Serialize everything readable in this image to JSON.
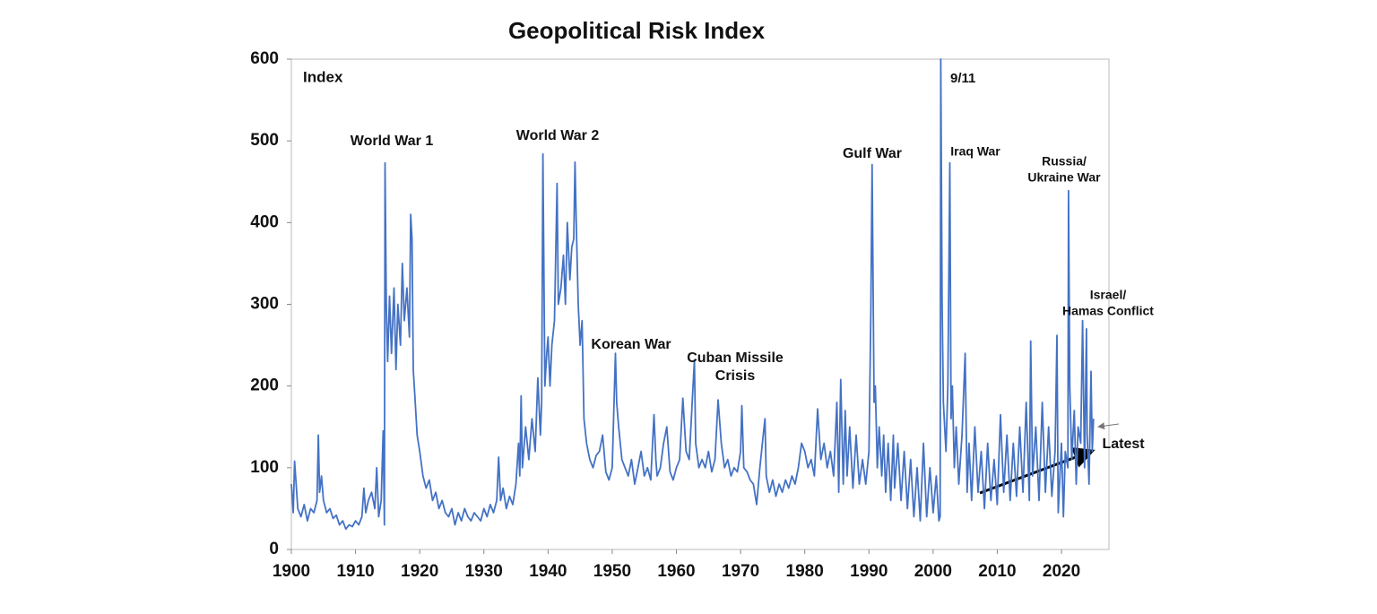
{
  "chart_data": {
    "type": "line",
    "title": "Geopolitical Risk Index",
    "y_label": "Index",
    "color": "#4472c4",
    "xlim": [
      1900,
      2027.4
    ],
    "xticks": [
      1900,
      1910,
      1920,
      1930,
      1940,
      1950,
      1960,
      1970,
      1980,
      1990,
      2000,
      2010,
      2020
    ],
    "ylim": [
      0,
      600
    ],
    "yticks": [
      0,
      100,
      200,
      300,
      400,
      500,
      600
    ],
    "annotations": [
      [
        "World War 1"
      ],
      [
        "World War 2"
      ],
      [
        "Korean War"
      ],
      [
        "Cuban Missile",
        "Crisis"
      ],
      [
        "Gulf War"
      ],
      [
        "9/11"
      ],
      [
        "Iraq War"
      ],
      [
        "Russia/",
        "Ukraine War"
      ],
      [
        "Israel/",
        "Hamas Conflict"
      ],
      [
        "Latest"
      ]
    ],
    "x": [
      1900,
      1900.3,
      1900.5,
      1901,
      1901.5,
      1902,
      1902.5,
      1903,
      1903.5,
      1904,
      1904.2,
      1904.4,
      1904.7,
      1905,
      1905.5,
      1906,
      1906.5,
      1907,
      1907.5,
      1908,
      1908.5,
      1909,
      1909.5,
      1910,
      1910.5,
      1911,
      1911.3,
      1911.6,
      1912,
      1912.5,
      1913,
      1913.3,
      1913.6,
      1914,
      1914.3,
      1914.5,
      1914.6,
      1914.8,
      1915,
      1915.3,
      1915.6,
      1916,
      1916.3,
      1916.6,
      1917,
      1917.3,
      1917.6,
      1918,
      1918.4,
      1918.6,
      1918.8,
      1919,
      1919.3,
      1919.6,
      1920,
      1920.5,
      1921,
      1921.5,
      1922,
      1922.5,
      1923,
      1923.5,
      1924,
      1924.5,
      1925,
      1925.5,
      1926,
      1926.5,
      1927,
      1927.5,
      1928,
      1928.5,
      1929,
      1929.5,
      1930,
      1930.5,
      1931,
      1931.5,
      1932,
      1932.3,
      1932.6,
      1933,
      1933.5,
      1934,
      1934.5,
      1935,
      1935.4,
      1935.6,
      1935.8,
      1936,
      1936.5,
      1937,
      1937.5,
      1938,
      1938.4,
      1938.8,
      1939,
      1939.2,
      1939.5,
      1939.8,
      1940,
      1940.3,
      1940.6,
      1941,
      1941.4,
      1941.6,
      1942,
      1942.4,
      1942.7,
      1943,
      1943.4,
      1943.7,
      1944,
      1944.2,
      1944.4,
      1944.7,
      1945,
      1945.3,
      1945.6,
      1946,
      1946.5,
      1947,
      1947.5,
      1948,
      1948.5,
      1949,
      1949.5,
      1950,
      1950.5,
      1950.7,
      1951,
      1951.5,
      1952,
      1952.5,
      1953,
      1953.5,
      1954,
      1954.5,
      1955,
      1955.5,
      1956,
      1956.5,
      1956.8,
      1957,
      1957.5,
      1958,
      1958.5,
      1959,
      1959.5,
      1960,
      1960.5,
      1961,
      1961.5,
      1962,
      1962.8,
      1963,
      1963.5,
      1964,
      1964.5,
      1965,
      1965.5,
      1966,
      1966.5,
      1967,
      1967.5,
      1968,
      1968.5,
      1969,
      1969.5,
      1970,
      1970.2,
      1970.5,
      1971,
      1971.5,
      1972,
      1972.5,
      1973,
      1973.8,
      1974,
      1974.5,
      1975,
      1975.5,
      1976,
      1976.5,
      1977,
      1977.5,
      1978,
      1978.5,
      1979,
      1979.5,
      1980,
      1980.5,
      1981,
      1981.5,
      1982,
      1982.5,
      1983,
      1983.5,
      1984,
      1984.5,
      1985,
      1985.3,
      1985.6,
      1986,
      1986.3,
      1986.6,
      1987,
      1987.5,
      1988,
      1988.5,
      1989,
      1989.5,
      1990,
      1990.3,
      1990.5,
      1990.8,
      1991,
      1991.3,
      1991.6,
      1992,
      1992.3,
      1992.6,
      1993,
      1993.4,
      1993.8,
      1994,
      1994.5,
      1995,
      1995.5,
      1996,
      1996.5,
      1997,
      1997.5,
      1998,
      1998.5,
      1999,
      1999.5,
      2000,
      2000.5,
      2000.9,
      2001.1,
      2001.2,
      2001.4,
      2001.6,
      2002,
      2002.3,
      2002.6,
      2002.8,
      2003,
      2003.3,
      2003.6,
      2004,
      2004.5,
      2005,
      2005.3,
      2005.6,
      2006,
      2006.5,
      2007,
      2007.5,
      2008,
      2008.5,
      2009,
      2009.5,
      2010,
      2010.5,
      2011,
      2011.5,
      2012,
      2012.5,
      2013,
      2013.5,
      2014,
      2014.5,
      2015,
      2015.2,
      2015.5,
      2016,
      2016.5,
      2017,
      2017.5,
      2018,
      2018.5,
      2019,
      2019.3,
      2019.5,
      2020,
      2020.3,
      2020.6,
      2021,
      2021.1,
      2021.3,
      2021.6,
      2022,
      2022.3,
      2022.6,
      2023,
      2023.3,
      2023.6,
      2023.9,
      2024,
      2024.3,
      2024.6,
      2024.8,
      2025
    ],
    "values": [
      80,
      45,
      108,
      50,
      40,
      55,
      35,
      50,
      45,
      60,
      140,
      70,
      90,
      60,
      45,
      50,
      38,
      42,
      30,
      35,
      25,
      30,
      28,
      35,
      30,
      40,
      75,
      45,
      60,
      70,
      50,
      100,
      40,
      60,
      145,
      30,
      473,
      300,
      230,
      310,
      240,
      320,
      220,
      300,
      250,
      350,
      280,
      320,
      260,
      410,
      380,
      220,
      180,
      140,
      120,
      90,
      75,
      85,
      60,
      70,
      50,
      60,
      45,
      40,
      50,
      30,
      45,
      35,
      50,
      40,
      35,
      45,
      40,
      35,
      50,
      40,
      55,
      45,
      60,
      113,
      60,
      75,
      50,
      65,
      55,
      80,
      130,
      90,
      188,
      100,
      150,
      110,
      160,
      120,
      210,
      140,
      180,
      484,
      200,
      240,
      260,
      200,
      250,
      280,
      448,
      300,
      320,
      360,
      300,
      400,
      330,
      370,
      380,
      474,
      400,
      300,
      250,
      280,
      160,
      130,
      110,
      100,
      115,
      120,
      140,
      95,
      85,
      100,
      240,
      180,
      150,
      110,
      100,
      90,
      110,
      80,
      100,
      120,
      90,
      100,
      85,
      165,
      110,
      90,
      100,
      130,
      150,
      95,
      85,
      100,
      110,
      185,
      120,
      110,
      232,
      130,
      100,
      110,
      100,
      120,
      95,
      110,
      183,
      130,
      100,
      110,
      90,
      100,
      95,
      120,
      176,
      100,
      95,
      85,
      80,
      55,
      100,
      160,
      90,
      70,
      85,
      65,
      80,
      70,
      85,
      75,
      90,
      80,
      100,
      130,
      120,
      100,
      110,
      90,
      172,
      110,
      130,
      100,
      120,
      90,
      180,
      70,
      208,
      80,
      170,
      90,
      150,
      75,
      140,
      80,
      110,
      80,
      120,
      290,
      471,
      180,
      200,
      100,
      150,
      90,
      140,
      70,
      130,
      60,
      140,
      75,
      130,
      60,
      120,
      50,
      110,
      40,
      100,
      35,
      130,
      40,
      100,
      45,
      90,
      35,
      40,
      600,
      300,
      180,
      120,
      200,
      473,
      160,
      200,
      100,
      150,
      80,
      140,
      240,
      70,
      130,
      60,
      150,
      70,
      120,
      50,
      130,
      60,
      110,
      55,
      165,
      70,
      140,
      60,
      130,
      65,
      150,
      70,
      180,
      60,
      255,
      90,
      150,
      60,
      180,
      70,
      150,
      65,
      120,
      262,
      45,
      130,
      40,
      120,
      100,
      439,
      200,
      110,
      170,
      80,
      150,
      130,
      280,
      100,
      270,
      140,
      80,
      218,
      120,
      160
    ]
  }
}
